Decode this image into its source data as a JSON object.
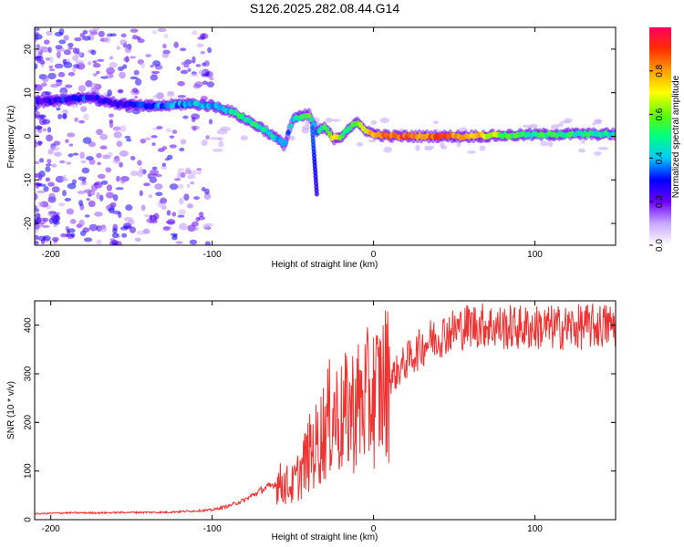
{
  "title": "S126.2025.282.08.44.G14",
  "chart_data": [
    {
      "type": "heatmap",
      "xlabel": "Height of straight line (km)",
      "ylabel": "Frequency (Hz)",
      "xlim": [
        -210,
        150
      ],
      "ylim": [
        -25,
        25
      ],
      "xticks": [
        -200,
        -100,
        0,
        100
      ],
      "yticks": [
        -20,
        -10,
        0,
        10,
        20
      ],
      "colorbar": {
        "label": "Normalized spectral amplitude",
        "range": [
          0,
          1
        ],
        "ticks": [
          0.0,
          0.2,
          0.4,
          0.6,
          0.8
        ],
        "colors": [
          "#ffffff",
          "#c8a8ff",
          "#6a00ff",
          "#0000ff",
          "#00c8ff",
          "#00ff80",
          "#60ff00",
          "#ffff00",
          "#ffa000",
          "#ff3000",
          "#ff0060"
        ]
      },
      "ridge": {
        "x": [
          -205,
          -190,
          -175,
          -160,
          -145,
          -130,
          -115,
          -100,
          -90,
          -80,
          -70,
          -62,
          -55,
          -50,
          -45,
          -40,
          -35,
          -30,
          -25,
          -20,
          -15,
          -10,
          -5,
          0,
          10,
          30,
          60,
          90,
          120,
          150
        ],
        "y": [
          8,
          8.5,
          9,
          7.5,
          7,
          7,
          7.5,
          7,
          6,
          4,
          2,
          0,
          -2,
          4,
          4.5,
          5,
          1,
          2,
          -0.5,
          0,
          2,
          3,
          1.5,
          0.5,
          0,
          0,
          0,
          0.3,
          0.5,
          0.5
        ],
        "amp": [
          0.25,
          0.3,
          0.3,
          0.25,
          0.3,
          0.35,
          0.4,
          0.4,
          0.45,
          0.5,
          0.5,
          0.45,
          0.3,
          0.45,
          0.5,
          0.55,
          0.4,
          0.55,
          0.75,
          0.6,
          0.5,
          0.55,
          0.7,
          0.75,
          0.85,
          0.85,
          0.8,
          0.5,
          0.5,
          0.45
        ]
      }
    },
    {
      "type": "line",
      "xlabel": "Height of straight line (km)",
      "ylabel": "SNR (10 * v/v)",
      "xlim": [
        -210,
        150
      ],
      "ylim": [
        0,
        450
      ],
      "xticks": [
        -200,
        -100,
        0,
        100
      ],
      "yticks": [
        0,
        100,
        200,
        300,
        400
      ],
      "color": "#ee3333",
      "series": [
        {
          "name": "SNR",
          "x": [
            -210,
            -190,
            -170,
            -150,
            -130,
            -110,
            -100,
            -90,
            -80,
            -70,
            -60,
            -50,
            -45,
            -40,
            -35,
            -30,
            -25,
            -20,
            -15,
            -10,
            -5,
            0,
            5,
            10,
            15,
            20,
            25,
            30,
            35,
            40,
            45,
            50,
            60,
            70,
            80,
            100,
            120,
            150
          ],
          "y": [
            12,
            14,
            14,
            15,
            15,
            18,
            20,
            28,
            40,
            60,
            75,
            70,
            100,
            135,
            155,
            190,
            220,
            205,
            225,
            235,
            245,
            255,
            270,
            290,
            305,
            325,
            340,
            355,
            370,
            375,
            385,
            390,
            400,
            400,
            395,
            395,
            395,
            400
          ]
        }
      ]
    }
  ]
}
